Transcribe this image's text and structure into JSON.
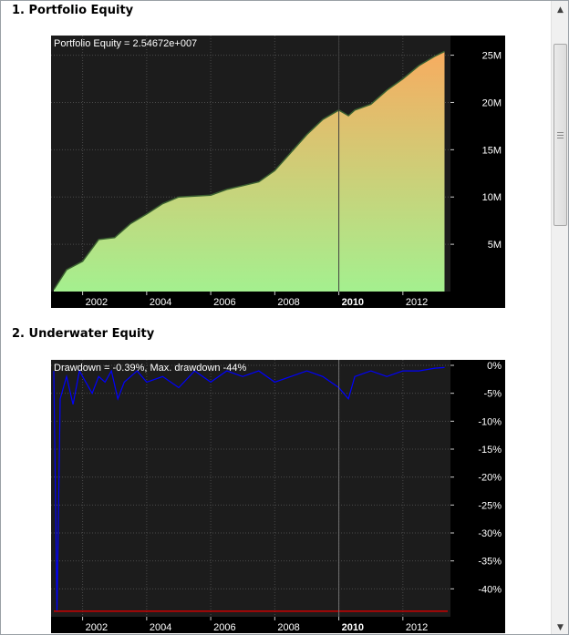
{
  "sections": [
    {
      "title": "1. Portfolio Equity"
    },
    {
      "title": "2. Underwater Equity"
    }
  ],
  "colors": {
    "panel_bg": "#1c1c1c",
    "axis_bg": "#000000",
    "equity_bottom": "#a4f08f",
    "equity_top": "#f7ac60",
    "equity_line": "#3a6030",
    "drawdown_line": "#0000ff",
    "maxdd_line": "#cc0000",
    "marker_line": "#aaaaaa"
  },
  "chart_data": [
    {
      "type": "area",
      "title": "Portfolio Equity = 2.54672e+007",
      "x_ticks": [
        "2002",
        "2004",
        "2006",
        "2008",
        "2010",
        "2012"
      ],
      "x_ticks_bold": [
        "2010"
      ],
      "y_ticks": [
        "5M",
        "10M",
        "15M",
        "20M",
        "25M"
      ],
      "y_tick_values": [
        5000000,
        10000000,
        15000000,
        20000000,
        25000000
      ],
      "ylim": [
        0,
        26500000
      ],
      "xlim": [
        2000.6,
        2012.9
      ],
      "grid": true,
      "x": [
        2000.6,
        2001.0,
        2001.5,
        2002.0,
        2002.5,
        2003.0,
        2003.5,
        2004.0,
        2004.5,
        2005.0,
        2005.5,
        2006.0,
        2006.5,
        2007.0,
        2007.5,
        2008.0,
        2008.5,
        2009.0,
        2009.5,
        2009.8,
        2010.0,
        2010.5,
        2011.0,
        2011.5,
        2012.0,
        2012.5,
        2012.8
      ],
      "y": [
        200000,
        2300000,
        3200000,
        5500000,
        5700000,
        7200000,
        8200000,
        9300000,
        10000000,
        10100000,
        10200000,
        10800000,
        11200000,
        11600000,
        12800000,
        14700000,
        16600000,
        18200000,
        19200000,
        18600000,
        19200000,
        19800000,
        21300000,
        22500000,
        23900000,
        24900000,
        25400000
      ]
    },
    {
      "type": "line",
      "title": "Drawdown = -0.39%, Max. drawdown -44%",
      "x_ticks": [
        "2002",
        "2004",
        "2006",
        "2008",
        "2010",
        "2012"
      ],
      "x_ticks_bold": [
        "2010"
      ],
      "y_ticks": [
        "0%",
        "-5%",
        "-10%",
        "-15%",
        "-20%",
        "-25%",
        "-30%",
        "-35%",
        "-40%"
      ],
      "y_tick_values": [
        0,
        -5,
        -10,
        -15,
        -20,
        -25,
        -30,
        -35,
        -40
      ],
      "ylim": [
        -45,
        0
      ],
      "xlim": [
        2000.6,
        2012.9
      ],
      "grid": true,
      "max_drawdown": -44,
      "x": [
        2000.6,
        2000.7,
        2000.8,
        2000.9,
        2001.0,
        2001.2,
        2001.4,
        2001.6,
        2001.8,
        2002.0,
        2002.2,
        2002.4,
        2002.6,
        2002.8,
        2003.0,
        2003.2,
        2003.5,
        2004.0,
        2004.5,
        2005.0,
        2005.5,
        2006.0,
        2006.5,
        2007.0,
        2007.5,
        2008.0,
        2008.5,
        2009.0,
        2009.5,
        2009.8,
        2010.0,
        2010.5,
        2011.0,
        2011.5,
        2012.0,
        2012.5,
        2012.8
      ],
      "y": [
        -1,
        -44,
        -6,
        -4,
        -2,
        -7,
        -1,
        -3,
        -5,
        -2,
        -3,
        -1,
        -6,
        -3,
        -2,
        -1,
        -3,
        -2,
        -4,
        -1,
        -3,
        -1,
        -2,
        -1,
        -3,
        -2,
        -1,
        -2,
        -4,
        -6,
        -2,
        -1,
        -2,
        -1,
        -1,
        -0.5,
        -0.39
      ]
    }
  ]
}
